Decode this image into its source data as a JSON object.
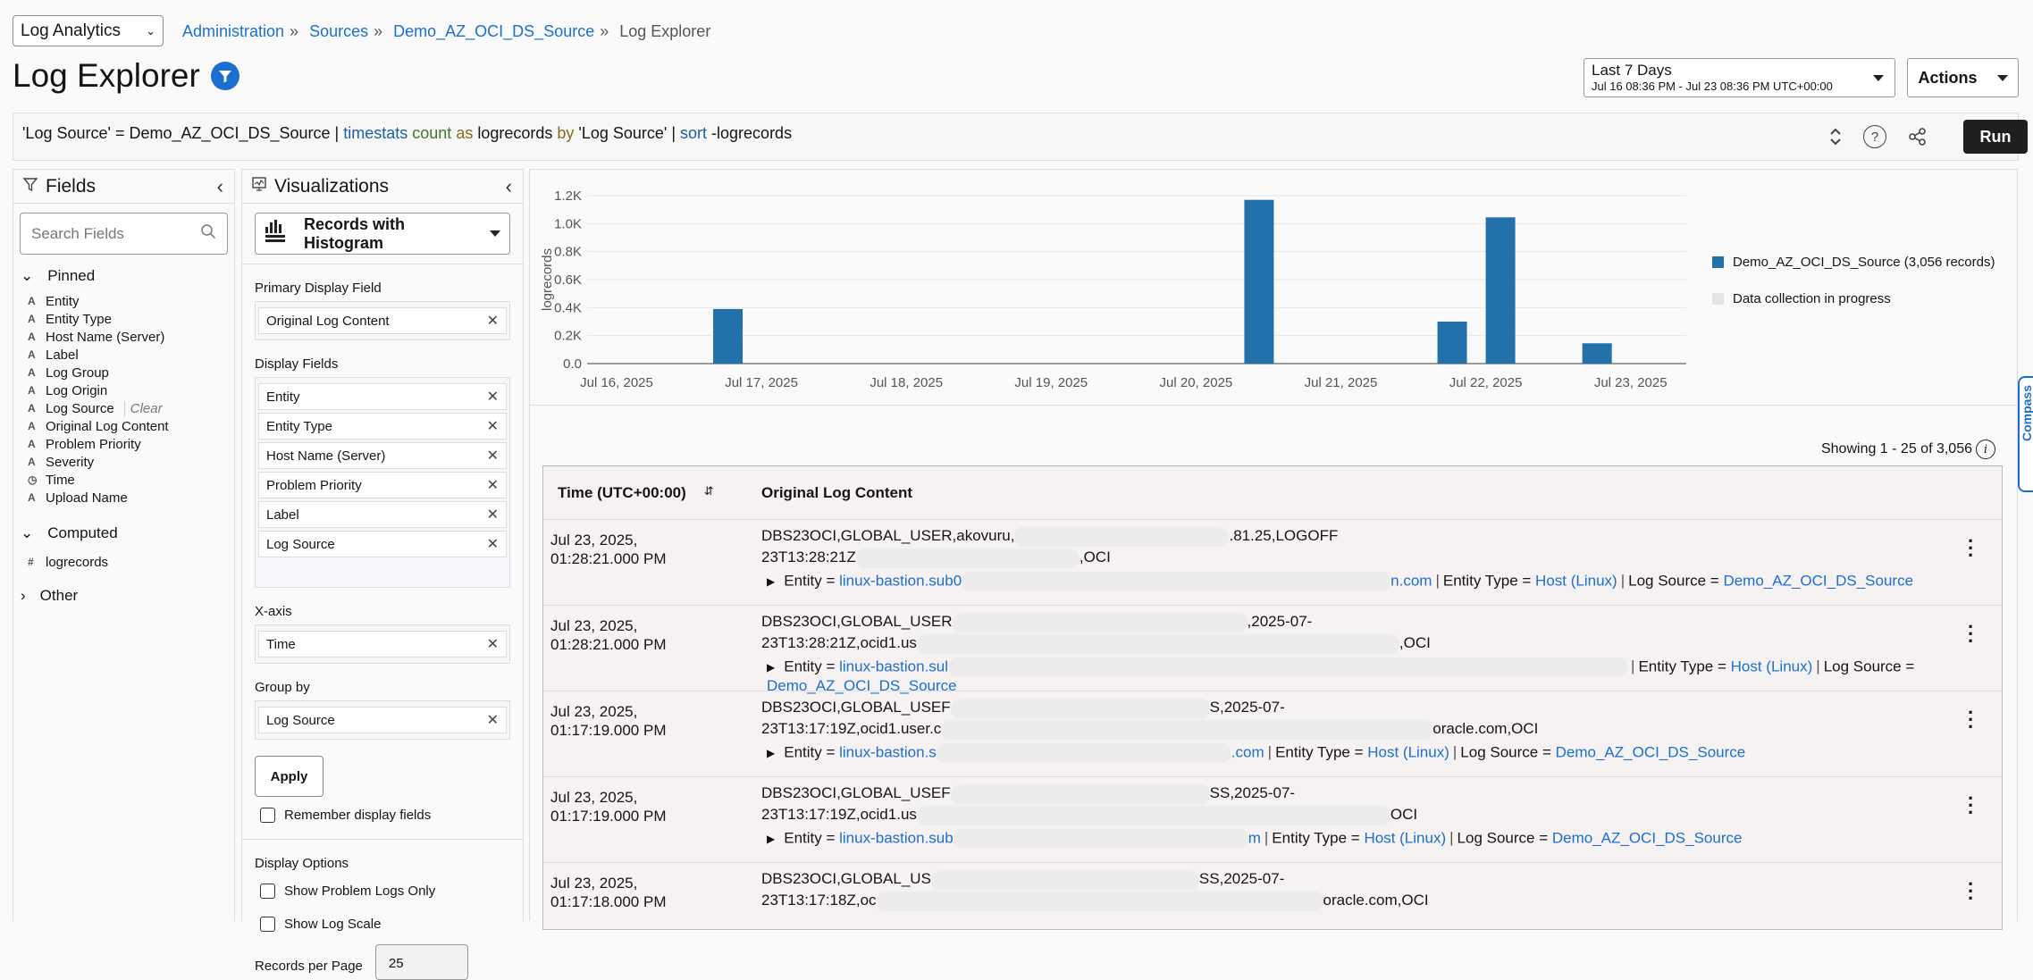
{
  "header": {
    "app_selector": "Log Analytics",
    "breadcrumb": [
      "Administration",
      "Sources",
      "Demo_AZ_OCI_DS_Source"
    ],
    "breadcrumb_current": "Log Explorer",
    "title": "Log Explorer",
    "time_range": {
      "label": "Last 7 Days",
      "range": "Jul 16 08:36 PM - Jul 23 08:36 PM UTC+00:00"
    },
    "actions_label": "Actions"
  },
  "query": {
    "p1": "'Log Source' = Demo_AZ_OCI_DS_Source | ",
    "timestats": "timestats",
    "count": " count",
    "as": " as",
    "p2": " logrecords ",
    "by": "by",
    "p3": " 'Log Source' | ",
    "sort": "sort",
    "p4": " -logrecords",
    "run_label": "Run"
  },
  "fields_panel": {
    "title": "Fields",
    "search_placeholder": "Search Fields",
    "pinned_label": "Pinned",
    "pinned": [
      {
        "type": "A",
        "name": "Entity"
      },
      {
        "type": "A",
        "name": "Entity Type"
      },
      {
        "type": "A",
        "name": "Host Name (Server)"
      },
      {
        "type": "A",
        "name": "Label"
      },
      {
        "type": "A",
        "name": "Log Group"
      },
      {
        "type": "A",
        "name": "Log Origin"
      },
      {
        "type": "A",
        "name": "Log Source",
        "clear": "Clear"
      },
      {
        "type": "A",
        "name": "Original Log Content"
      },
      {
        "type": "A",
        "name": "Problem Priority"
      },
      {
        "type": "A",
        "name": "Severity"
      },
      {
        "type": "◷",
        "name": "Time"
      },
      {
        "type": "A",
        "name": "Upload Name"
      }
    ],
    "computed_label": "Computed",
    "computed": [
      {
        "type": "#",
        "name": "logrecords"
      }
    ],
    "other_label": "Other"
  },
  "viz_panel": {
    "title": "Visualizations",
    "selected": "Records with Histogram",
    "primary_label": "Primary Display Field",
    "primary": "Original Log Content",
    "display_label": "Display Fields",
    "display_fields": [
      "Entity",
      "Entity Type",
      "Host Name (Server)",
      "Problem Priority",
      "Label",
      "Log Source"
    ],
    "xaxis_label": "X-axis",
    "xaxis": "Time",
    "groupby_label": "Group by",
    "groupby": "Log Source",
    "apply_label": "Apply",
    "remember_label": "Remember display fields",
    "display_options_label": "Display Options",
    "show_problem_label": "Show Problem Logs Only",
    "show_log_scale_label": "Show Log Scale",
    "records_per_page_label": "Records per Page",
    "records_per_page": "25"
  },
  "chart_data": {
    "type": "bar",
    "ylabel": "logrecords",
    "ylim": [
      0,
      1200
    ],
    "yticks": [
      "0.0",
      "0.2K",
      "0.4K",
      "0.6K",
      "0.8K",
      "1.0K",
      "1.2K"
    ],
    "ytick_values": [
      0,
      200,
      400,
      600,
      800,
      1000,
      1200
    ],
    "xticks": [
      "Jul 16, 2025",
      "Jul 17, 2025",
      "Jul 18, 2025",
      "Jul 19, 2025",
      "Jul 20, 2025",
      "Jul 21, 2025",
      "Jul 22, 2025",
      "Jul 23, 2025"
    ],
    "xtick_values": [
      "2025-07-16T00:00Z",
      "2025-07-17T00:00Z",
      "2025-07-18T00:00Z",
      "2025-07-19T00:00Z",
      "2025-07-20T00:00Z",
      "2025-07-21T00:00Z",
      "2025-07-22T00:00Z",
      "2025-07-23T00:00Z"
    ],
    "grid": true,
    "series": [
      {
        "name": "Demo_AZ_OCI_DS_Source (3,056 records)",
        "color": "#2271aa",
        "x": [
          "2025-07-16T16:00Z",
          "2025-07-20T08:00Z",
          "2025-07-21T16:00Z",
          "2025-07-22T00:00Z",
          "2025-07-22T16:00Z"
        ],
        "values": [
          390,
          1170,
          300,
          1045,
          145
        ]
      }
    ],
    "in_progress": {
      "name": "Data collection in progress",
      "color": "#e5e5e5",
      "x": "2025-07-23T20:36Z"
    },
    "legend": "right"
  },
  "results": {
    "showing": "Showing 1 - 25 of 3,056",
    "col_time": "Time (UTC+00:00)",
    "col_content": "Original Log Content",
    "entity_key": "Entity = ",
    "etype_key": "Entity Type = ",
    "lsource_key": "Log Source = ",
    "rows": [
      {
        "date": "Jul 23, 2025,",
        "time": "01:28:21.000 PM",
        "l1a": "DBS23OCI,GLOBAL_USER,akovuru,",
        "l1b": ".81.25,LOGOFF",
        "l2a": "23T13:28:21Z",
        "l2b": ",OCI",
        "entA": "linux-bastion.sub0",
        "entB": "n.com",
        "etype": "Host (Linux)",
        "lsource": "Demo_AZ_OCI_DS_Source"
      },
      {
        "date": "Jul 23, 2025,",
        "time": "01:28:21.000 PM",
        "l1a": "DBS23OCI,GLOBAL_USER",
        "l1b": ",2025-07-",
        "l2a": "23T13:28:21Z,ocid1.us",
        "l2b": ",OCI",
        "entA": "linux-bastion.sul",
        "entB": "",
        "etype": "Host (Linux)",
        "lsource": "Demo_AZ_OCI_DS_Source"
      },
      {
        "date": "Jul 23, 2025,",
        "time": "01:17:19.000 PM",
        "l1a": "DBS23OCI,GLOBAL_USEF",
        "l1b": "S,2025-07-",
        "l2a": "23T13:17:19Z,ocid1.user.c",
        "l2b": "oracle.com,OCI",
        "entA": "linux-bastion.s",
        "entB": ".com",
        "etype": "Host (Linux)",
        "lsource": "Demo_AZ_OCI_DS_Source"
      },
      {
        "date": "Jul 23, 2025,",
        "time": "01:17:19.000 PM",
        "l1a": "DBS23OCI,GLOBAL_USEF",
        "l1b": "SS,2025-07-",
        "l2a": "23T13:17:19Z,ocid1.us",
        "l2b": "OCI",
        "entA": "linux-bastion.sub",
        "entB": "m",
        "etype": "Host (Linux)",
        "lsource": "Demo_AZ_OCI_DS_Source"
      },
      {
        "date": "Jul 23, 2025,",
        "time": "01:17:18.000 PM",
        "l1a": "DBS23OCI,GLOBAL_US",
        "l1b": "SS,2025-07-",
        "l2a": "23T13:17:18Z,oc",
        "l2b": "oracle.com,OCI",
        "entA": "",
        "entB": "",
        "etype": "",
        "lsource": ""
      }
    ]
  },
  "compass_label": "Compass",
  "colors": {
    "accent": "#1a6fd1",
    "bar": "#2271aa",
    "run_button": "#1f1f1f"
  }
}
